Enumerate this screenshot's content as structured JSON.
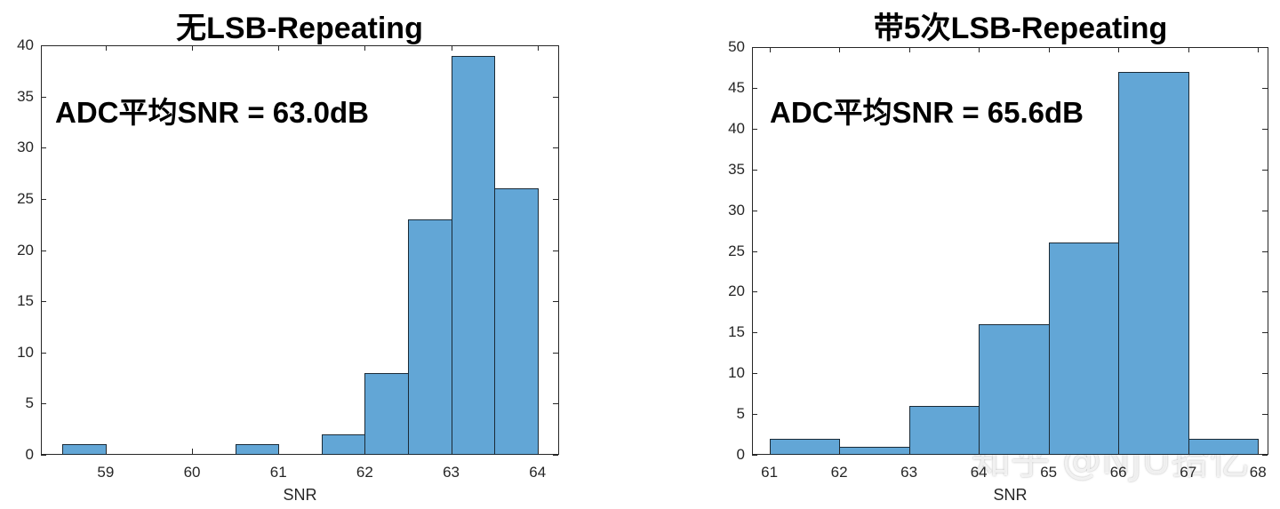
{
  "colors": {
    "bar": "#62a6d6",
    "bar_edge": "#1a2a36",
    "axis": "#262626"
  },
  "watermark": "知乎 @NJU拾忆",
  "chart_data": [
    {
      "type": "bar",
      "title": "无LSB-Repeating",
      "annotation": "ADC平均SNR = 63.0dB",
      "xlabel": "SNR",
      "ylabel": "",
      "xlim": [
        58.25,
        64.25
      ],
      "ylim": [
        0,
        40
      ],
      "xticks": [
        59,
        60,
        61,
        62,
        63,
        64
      ],
      "yticks": [
        0,
        5,
        10,
        15,
        20,
        25,
        30,
        35,
        40
      ],
      "bin_edges": [
        58.5,
        59.0,
        59.5,
        60.0,
        60.5,
        61.0,
        61.5,
        62.0,
        62.5,
        63.0,
        63.5,
        64.0
      ],
      "values": [
        1,
        0,
        0,
        0,
        1,
        0,
        2,
        8,
        23,
        39,
        26
      ],
      "grid": false
    },
    {
      "type": "bar",
      "title": "带5次LSB-Repeating",
      "annotation": "ADC平均SNR = 65.6dB",
      "xlabel": "SNR",
      "ylabel": "",
      "xlim": [
        60.75,
        68.15
      ],
      "ylim": [
        0,
        50
      ],
      "xticks": [
        61,
        62,
        63,
        64,
        65,
        66,
        67,
        68
      ],
      "yticks": [
        0,
        5,
        10,
        15,
        20,
        25,
        30,
        35,
        40,
        45,
        50
      ],
      "bin_edges": [
        61,
        62,
        63,
        64,
        65,
        66,
        67,
        68
      ],
      "values": [
        2,
        1,
        6,
        16,
        26,
        47,
        2
      ],
      "grid": false
    }
  ]
}
